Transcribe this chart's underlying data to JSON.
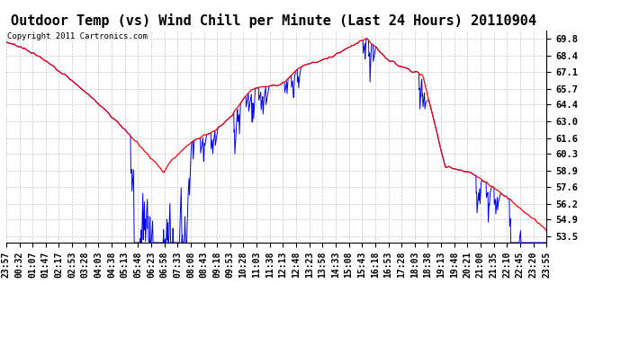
{
  "title": "Outdoor Temp (vs) Wind Chill per Minute (Last 24 Hours) 20110904",
  "copyright": "Copyright 2011 Cartronics.com",
  "yticks": [
    53.5,
    54.9,
    56.2,
    57.6,
    58.9,
    60.3,
    61.6,
    63.0,
    64.4,
    65.7,
    67.1,
    68.4,
    69.8
  ],
  "ylim": [
    53.0,
    70.5
  ],
  "temp_color": "#ff0000",
  "wind_color": "#0000ff",
  "bg_color": "#ffffff",
  "grid_color": "#c8c8c8",
  "title_fontsize": 11,
  "copyright_fontsize": 6.5,
  "tick_fontsize": 7.5,
  "x_tick_labels": [
    "23:57",
    "00:32",
    "01:07",
    "01:47",
    "02:17",
    "02:53",
    "03:28",
    "04:03",
    "04:38",
    "05:13",
    "05:48",
    "06:23",
    "06:58",
    "07:33",
    "08:08",
    "08:43",
    "09:18",
    "09:53",
    "10:28",
    "11:03",
    "11:38",
    "12:13",
    "12:48",
    "13:23",
    "13:58",
    "14:33",
    "15:08",
    "15:43",
    "16:18",
    "16:53",
    "17:28",
    "18:03",
    "18:38",
    "19:13",
    "19:48",
    "20:21",
    "21:00",
    "21:35",
    "22:10",
    "22:45",
    "23:20",
    "23:55"
  ]
}
